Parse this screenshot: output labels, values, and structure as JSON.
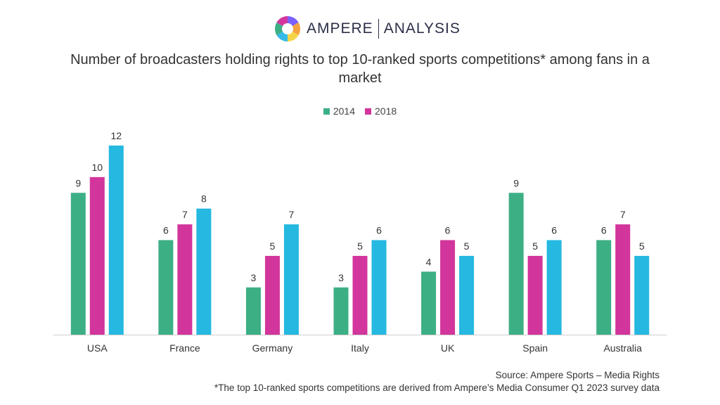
{
  "logo": {
    "brand": "AMPERE",
    "sub": "ANALYSIS",
    "colors": [
      "#7b61ff",
      "#f4a340",
      "#f5d547",
      "#35b9e9",
      "#3caf85",
      "#d2359c"
    ]
  },
  "title": "Number of broadcasters holding rights to top 10-ranked sports competitions* among fans in a market",
  "footer": {
    "source": "Source: Ampere Sports – Media Rights",
    "note": "*The top 10-ranked sports competitions are derived from Ampere’s Media Consumer Q1 2023 survey data"
  },
  "chart_data": {
    "type": "bar",
    "categories": [
      "USA",
      "France",
      "Germany",
      "Italy",
      "UK",
      "Spain",
      "Australia"
    ],
    "series": [
      {
        "name": "2014",
        "values": [
          9,
          6,
          3,
          3,
          4,
          9,
          6
        ],
        "color": "#3caf85"
      },
      {
        "name": "2018",
        "values": [
          10,
          7,
          5,
          5,
          6,
          5,
          7
        ],
        "color": "#d2359c"
      },
      {
        "values": [
          12,
          8,
          7,
          6,
          5,
          6,
          5
        ],
        "color": "#25b8e0"
      }
    ],
    "ylim": [
      0,
      12
    ],
    "grid": false,
    "legend": "top-center",
    "data_labels": true
  }
}
